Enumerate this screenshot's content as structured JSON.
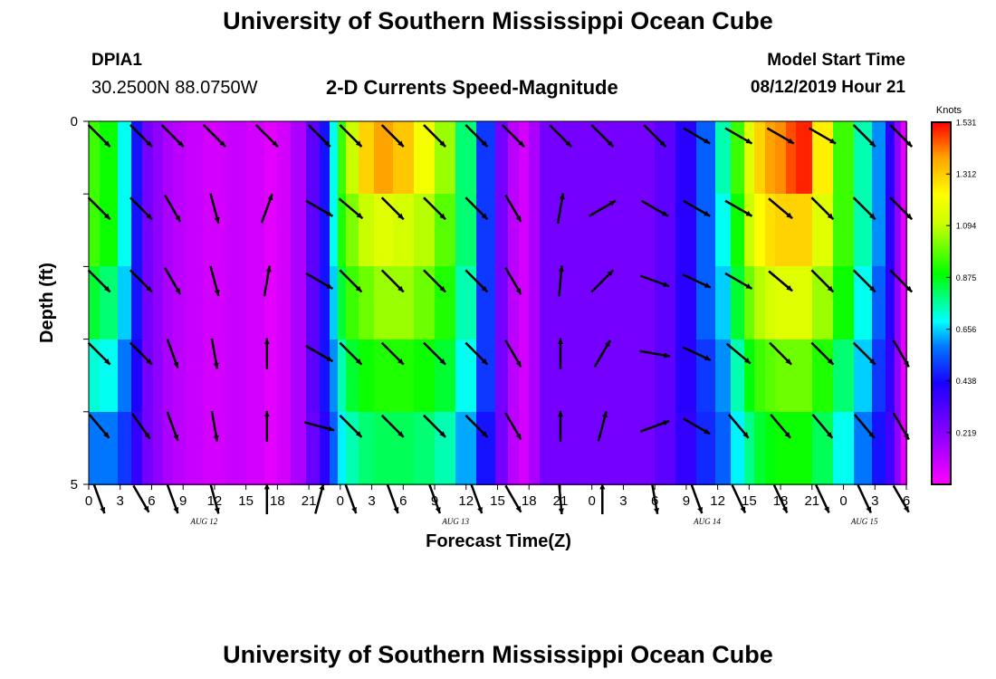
{
  "header": {
    "title": "University of Southern Mississippi Ocean Cube",
    "station_id": "DPIA1",
    "coordinates": "30.2500N 88.0750W",
    "product": "2-D Currents Speed-Magnitude",
    "model_start_label": "Model Start Time",
    "model_start_value": "08/12/2019 Hour 21"
  },
  "footer": {
    "title": "University of Southern Mississippi Ocean Cube"
  },
  "chart_data": {
    "type": "heatmap",
    "title": "2-D Currents Speed-Magnitude",
    "xlabel": "Forecast Time(Z)",
    "ylabel": "Depth (ft)",
    "x_tick_labels": [
      "0",
      "3",
      "6",
      "9",
      "12",
      "15",
      "18",
      "21",
      "0",
      "3",
      "6",
      "9",
      "12",
      "15",
      "18",
      "21",
      "0",
      "3",
      "6",
      "9",
      "12",
      "15",
      "18",
      "21",
      "0",
      "3",
      "6"
    ],
    "date_labels": [
      {
        "label": "AUG 12",
        "hour": 11
      },
      {
        "label": "AUG 13",
        "hour": 35
      },
      {
        "label": "AUG 14",
        "hour": 59
      },
      {
        "label": "AUG 15",
        "hour": 74
      }
    ],
    "x_range_hours": [
      0,
      78
    ],
    "depth_range_ft": [
      0,
      5
    ],
    "y_tick_labels": [
      "0",
      "5"
    ],
    "depth_levels_ft": [
      0,
      1,
      2,
      3,
      4,
      5
    ],
    "colorbar": {
      "unit": "Knots",
      "range": [
        0,
        1.531
      ],
      "tick_values": [
        "1.531",
        "1.312",
        "1.094",
        "0.875",
        "0.656",
        "0.438",
        "0.219"
      ]
    },
    "speed_times_hours": [
      0,
      2,
      3.6,
      4.6,
      5.6,
      6.6,
      7.5,
      8.5,
      10,
      12,
      14,
      16,
      17.5,
      18.5,
      20,
      21.5,
      22.5,
      23.5,
      24,
      25,
      26.5,
      28,
      30,
      32,
      34,
      36,
      38,
      39.5,
      40.5,
      41.5,
      42.5,
      43.5,
      44.5,
      45.5,
      47,
      49,
      51,
      53,
      55,
      57,
      59,
      60.5,
      62,
      63,
      64,
      65,
      66,
      67,
      68,
      70,
      72,
      74,
      75.5,
      76.5,
      77.2,
      77.8
    ],
    "speed_levels": [
      [
        0.95,
        0.9,
        0.7,
        0.45,
        0.25,
        0.2,
        0.15,
        0.12,
        0.1,
        0.08,
        0.1,
        0.08,
        0.05,
        0.08,
        0.15,
        0.3,
        0.45,
        0.7,
        0.95,
        1.1,
        1.3,
        1.38,
        1.32,
        1.2,
        1.05,
        0.8,
        0.5,
        0.25,
        0.12,
        0.08,
        0.15,
        0.25,
        0.25,
        0.25,
        0.25,
        0.25,
        0.25,
        0.25,
        0.3,
        0.4,
        0.55,
        0.75,
        0.95,
        1.15,
        1.3,
        1.38,
        1.4,
        1.46,
        1.5,
        1.25,
        0.95,
        0.75,
        0.6,
        0.4,
        0.2,
        0.05
      ],
      [
        0.95,
        0.9,
        0.7,
        0.45,
        0.25,
        0.2,
        0.15,
        0.12,
        0.1,
        0.08,
        0.1,
        0.08,
        0.05,
        0.08,
        0.15,
        0.3,
        0.45,
        0.7,
        0.92,
        1.02,
        1.1,
        1.15,
        1.12,
        1.08,
        0.98,
        0.8,
        0.5,
        0.25,
        0.12,
        0.08,
        0.15,
        0.25,
        0.25,
        0.25,
        0.25,
        0.25,
        0.25,
        0.25,
        0.3,
        0.4,
        0.55,
        0.7,
        0.9,
        1.1,
        1.22,
        1.28,
        1.3,
        1.3,
        1.3,
        1.15,
        0.95,
        0.75,
        0.6,
        0.4,
        0.2,
        0.05
      ],
      [
        0.85,
        0.8,
        0.65,
        0.45,
        0.25,
        0.2,
        0.15,
        0.12,
        0.1,
        0.08,
        0.1,
        0.08,
        0.05,
        0.08,
        0.15,
        0.3,
        0.45,
        0.65,
        0.85,
        0.95,
        1.0,
        1.05,
        1.05,
        1.0,
        0.92,
        0.75,
        0.5,
        0.25,
        0.12,
        0.08,
        0.15,
        0.25,
        0.25,
        0.25,
        0.25,
        0.25,
        0.25,
        0.25,
        0.3,
        0.4,
        0.55,
        0.65,
        0.85,
        1.0,
        1.08,
        1.12,
        1.15,
        1.15,
        1.15,
        1.05,
        0.9,
        0.7,
        0.55,
        0.4,
        0.2,
        0.05
      ],
      [
        0.72,
        0.7,
        0.58,
        0.42,
        0.25,
        0.2,
        0.15,
        0.12,
        0.1,
        0.08,
        0.1,
        0.08,
        0.05,
        0.08,
        0.15,
        0.3,
        0.45,
        0.6,
        0.75,
        0.85,
        0.9,
        0.92,
        0.92,
        0.9,
        0.85,
        0.7,
        0.5,
        0.25,
        0.12,
        0.08,
        0.15,
        0.25,
        0.25,
        0.25,
        0.25,
        0.25,
        0.25,
        0.25,
        0.3,
        0.4,
        0.5,
        0.6,
        0.75,
        0.88,
        0.95,
        0.98,
        1.0,
        1.0,
        1.0,
        0.92,
        0.8,
        0.65,
        0.5,
        0.38,
        0.2,
        0.05
      ],
      [
        0.58,
        0.58,
        0.5,
        0.38,
        0.25,
        0.2,
        0.15,
        0.12,
        0.1,
        0.08,
        0.1,
        0.08,
        0.05,
        0.08,
        0.15,
        0.28,
        0.4,
        0.55,
        0.68,
        0.75,
        0.8,
        0.82,
        0.82,
        0.8,
        0.75,
        0.62,
        0.45,
        0.25,
        0.12,
        0.08,
        0.15,
        0.25,
        0.25,
        0.25,
        0.25,
        0.25,
        0.25,
        0.25,
        0.3,
        0.38,
        0.48,
        0.55,
        0.68,
        0.78,
        0.85,
        0.88,
        0.9,
        0.9,
        0.9,
        0.82,
        0.7,
        0.58,
        0.45,
        0.35,
        0.2,
        0.05
      ],
      [
        0.5,
        0.5,
        0.45,
        0.35,
        0.25,
        0.2,
        0.15,
        0.12,
        0.1,
        0.08,
        0.1,
        0.08,
        0.05,
        0.08,
        0.15,
        0.25,
        0.38,
        0.5,
        0.62,
        0.68,
        0.72,
        0.74,
        0.74,
        0.72,
        0.68,
        0.58,
        0.42,
        0.25,
        0.12,
        0.08,
        0.15,
        0.25,
        0.25,
        0.25,
        0.25,
        0.25,
        0.25,
        0.25,
        0.28,
        0.35,
        0.45,
        0.5,
        0.62,
        0.7,
        0.75,
        0.78,
        0.8,
        0.8,
        0.8,
        0.72,
        0.62,
        0.52,
        0.42,
        0.32,
        0.2,
        0.05
      ]
    ],
    "vector_times_hours": [
      1,
      5,
      8,
      12,
      17,
      22,
      25,
      29,
      33,
      37,
      40.5,
      45,
      49,
      54,
      58,
      62,
      66,
      70,
      74,
      77.5
    ],
    "vector_directions_deg": [
      [
        135,
        135,
        135,
        135,
        135,
        135,
        135,
        135,
        135,
        135,
        135,
        135,
        135,
        135,
        120,
        120,
        120,
        120,
        135,
        135
      ],
      [
        135,
        135,
        150,
        165,
        20,
        120,
        130,
        135,
        135,
        135,
        150,
        10,
        60,
        120,
        120,
        120,
        130,
        135,
        135,
        135
      ],
      [
        135,
        135,
        150,
        165,
        10,
        120,
        135,
        135,
        135,
        135,
        150,
        5,
        45,
        110,
        115,
        120,
        130,
        135,
        135,
        135
      ],
      [
        135,
        135,
        160,
        170,
        0,
        120,
        135,
        135,
        135,
        135,
        150,
        0,
        30,
        100,
        115,
        130,
        135,
        135,
        135,
        150
      ],
      [
        140,
        145,
        160,
        170,
        0,
        105,
        135,
        135,
        135,
        135,
        150,
        0,
        15,
        70,
        120,
        140,
        140,
        140,
        140,
        150
      ],
      [
        160,
        150,
        160,
        165,
        0,
        15,
        160,
        160,
        160,
        160,
        150,
        175,
        0,
        170,
        160,
        155,
        155,
        155,
        155,
        150
      ]
    ]
  }
}
